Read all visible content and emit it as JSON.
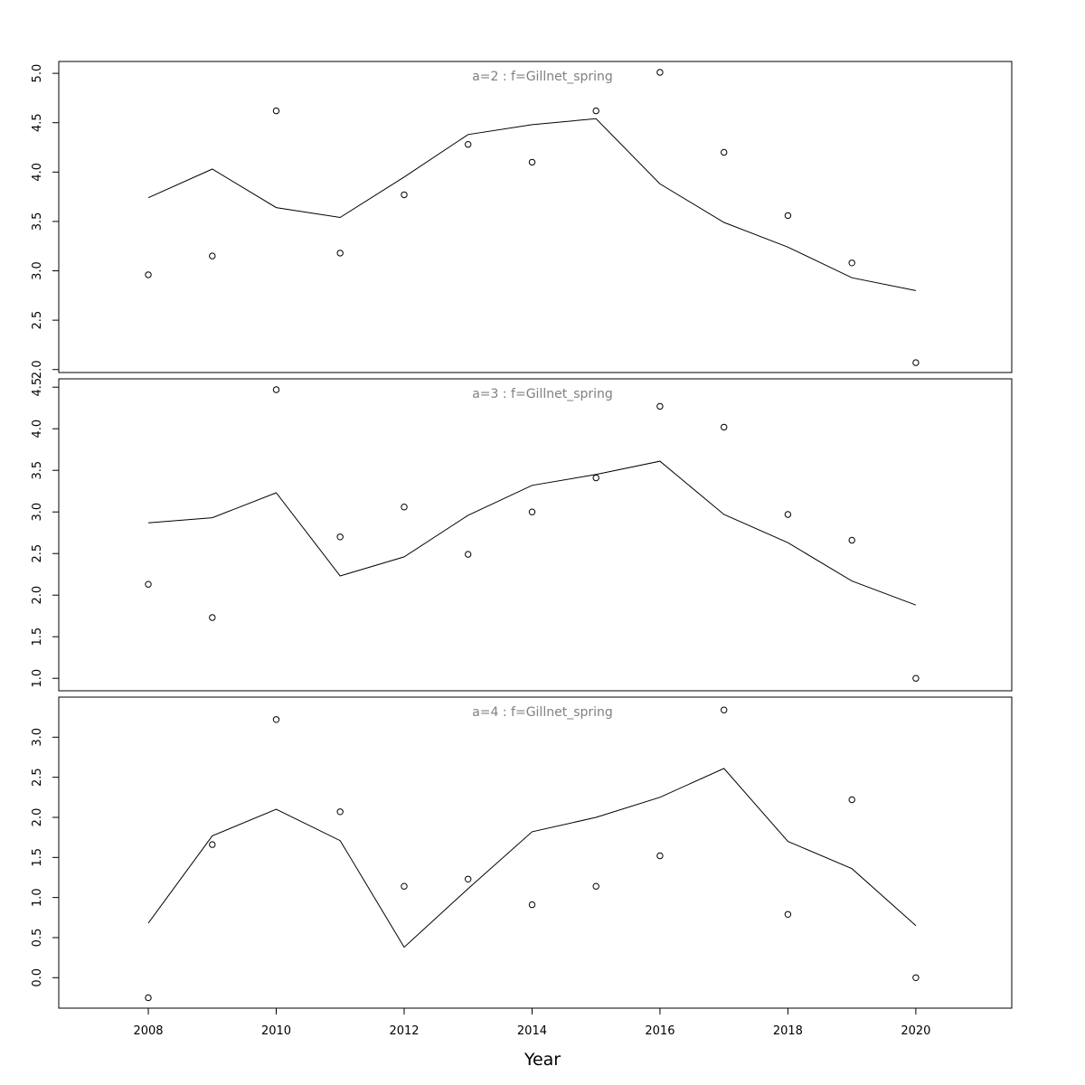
{
  "chart_data": {
    "type": "scatter",
    "xlabel": "Year",
    "x_ticks": [
      "2008",
      "2010",
      "2012",
      "2014",
      "2016",
      "2018",
      "2020"
    ],
    "xlim": [
      2006.6,
      2021.5
    ],
    "x": [
      2008,
      2009,
      2010,
      2011,
      2012,
      2013,
      2014,
      2015,
      2016,
      2017,
      2018,
      2019,
      2020
    ],
    "panels": [
      {
        "title": "a=2  :  f=Gillnet_spring",
        "ylim": [
          1.97,
          5.12
        ],
        "y_ticks": [
          "2.0",
          "2.5",
          "3.0",
          "3.5",
          "4.0",
          "4.5",
          "5.0"
        ],
        "series": [
          {
            "kind": "points",
            "values": [
              2.96,
              3.15,
              4.62,
              3.18,
              3.77,
              4.28,
              4.1,
              4.62,
              5.01,
              4.2,
              3.56,
              3.08,
              2.07
            ]
          },
          {
            "kind": "line",
            "values": [
              3.74,
              4.03,
              3.64,
              3.54,
              3.95,
              4.38,
              4.48,
              4.54,
              3.88,
              3.49,
              3.24,
              2.93,
              2.8
            ]
          }
        ]
      },
      {
        "title": "a=3  :  f=Gillnet_spring",
        "ylim": [
          0.85,
          4.6
        ],
        "y_ticks": [
          "1.0",
          "1.5",
          "2.0",
          "2.5",
          "3.0",
          "3.5",
          "4.0",
          "4.5"
        ],
        "series": [
          {
            "kind": "points",
            "values": [
              2.13,
              1.73,
              4.47,
              2.7,
              3.06,
              2.49,
              3.0,
              3.41,
              4.27,
              4.02,
              2.97,
              2.66,
              1.0
            ]
          },
          {
            "kind": "line",
            "values": [
              2.87,
              2.93,
              3.23,
              2.23,
              2.46,
              2.96,
              3.32,
              3.45,
              3.61,
              2.97,
              2.63,
              2.17,
              1.88
            ]
          }
        ]
      },
      {
        "title": "a=4  :  f=Gillnet_spring",
        "ylim": [
          -0.38,
          3.5
        ],
        "y_ticks": [
          "0.0",
          "0.5",
          "1.0",
          "1.5",
          "2.0",
          "2.5",
          "3.0"
        ],
        "series": [
          {
            "kind": "points",
            "values": [
              -0.25,
              1.66,
              3.22,
              2.07,
              1.14,
              1.23,
              0.91,
              1.14,
              1.52,
              3.34,
              0.79,
              2.22,
              0.0
            ]
          },
          {
            "kind": "line",
            "values": [
              0.68,
              1.77,
              2.1,
              1.71,
              0.38,
              1.11,
              1.82,
              2.0,
              2.25,
              2.61,
              1.7,
              1.36,
              0.65
            ]
          }
        ]
      }
    ]
  }
}
